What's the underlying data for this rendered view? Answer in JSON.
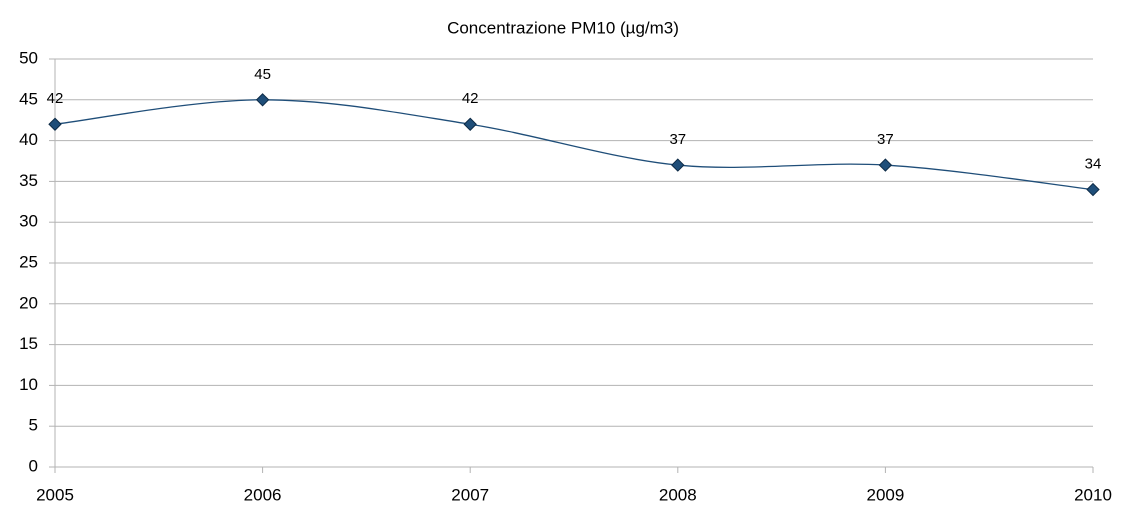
{
  "chart_data": {
    "type": "line",
    "title": "Concentrazione PM10 (µg/m3)",
    "x": [
      2005,
      2006,
      2007,
      2008,
      2009,
      2010
    ],
    "series": [
      {
        "name": "PM10",
        "color": "#1f4e79",
        "values": [
          42,
          45,
          42,
          37,
          37,
          34
        ]
      }
    ],
    "xlim": [
      2005,
      2010
    ],
    "xticks": [
      2005,
      2006,
      2007,
      2008,
      2009,
      2010
    ],
    "ylim": [
      0,
      50
    ],
    "yticks": [
      0,
      5,
      10,
      15,
      20,
      25,
      30,
      35,
      40,
      45,
      50
    ],
    "grid": true,
    "smooth": true,
    "data_labels": true
  }
}
